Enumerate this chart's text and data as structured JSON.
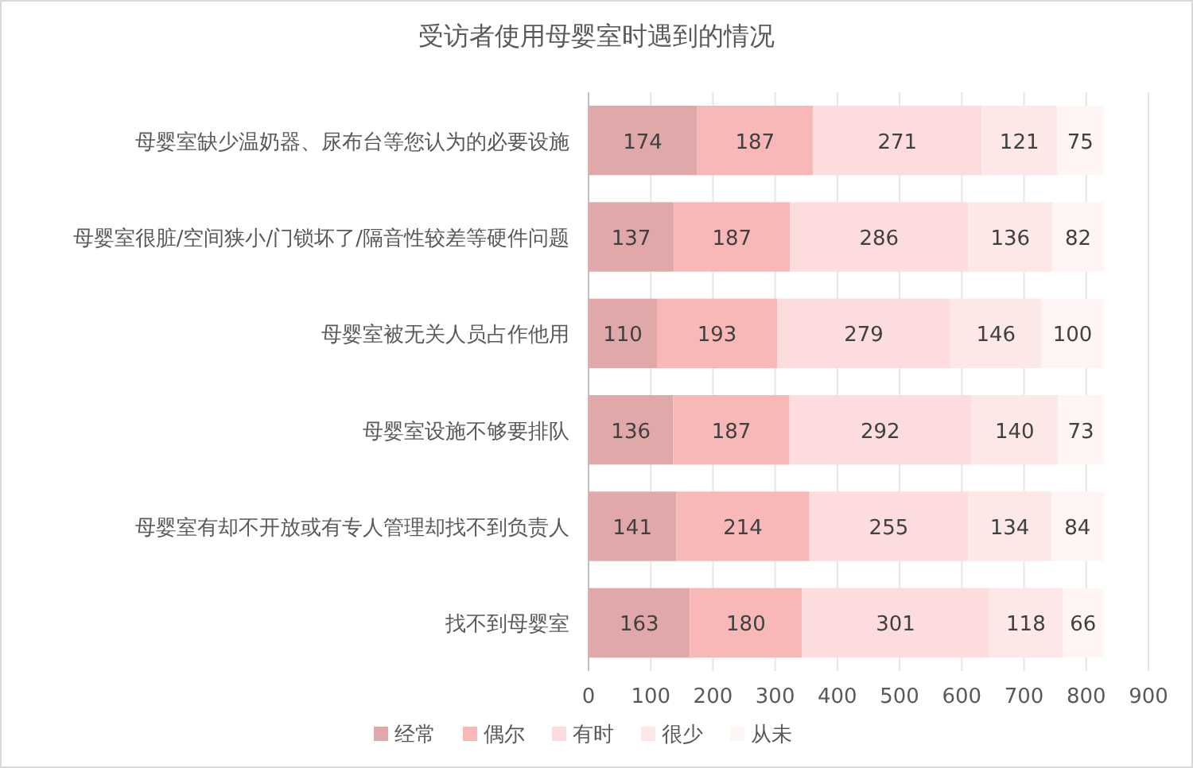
{
  "chart_data": {
    "type": "bar",
    "orientation": "horizontal",
    "stacked": true,
    "title": "受访者使用母婴室时遇到的情况",
    "categories": [
      "母婴室缺少温奶器、尿布台等您认为的必要设施",
      "母婴室很脏/空间狭小/门锁坏了/隔音性较差等硬件问题",
      "母婴室被无关人员占作他用",
      "母婴室设施不够要排队",
      "母婴室有却不开放或有专人管理却找不到负责人",
      "找不到母婴室"
    ],
    "series": [
      {
        "name": "经常",
        "color": "#e0a8a8",
        "values": [
          174,
          137,
          110,
          136,
          141,
          163
        ]
      },
      {
        "name": "偶尔",
        "color": "#f8b8b8",
        "values": [
          187,
          187,
          193,
          187,
          214,
          180
        ]
      },
      {
        "name": "有时",
        "color": "#fcdcdc",
        "values": [
          271,
          286,
          279,
          292,
          255,
          301
        ]
      },
      {
        "name": "很少",
        "color": "#fde8e8",
        "values": [
          121,
          136,
          146,
          140,
          134,
          118
        ]
      },
      {
        "name": "从未",
        "color": "#fff5f5",
        "values": [
          75,
          82,
          100,
          73,
          84,
          66
        ]
      }
    ],
    "xlim": [
      0,
      900
    ],
    "xticks": [
      0,
      100,
      200,
      300,
      400,
      500,
      600,
      700,
      800,
      900
    ],
    "grid": "x",
    "legend": "bottom",
    "data_labels": true
  }
}
